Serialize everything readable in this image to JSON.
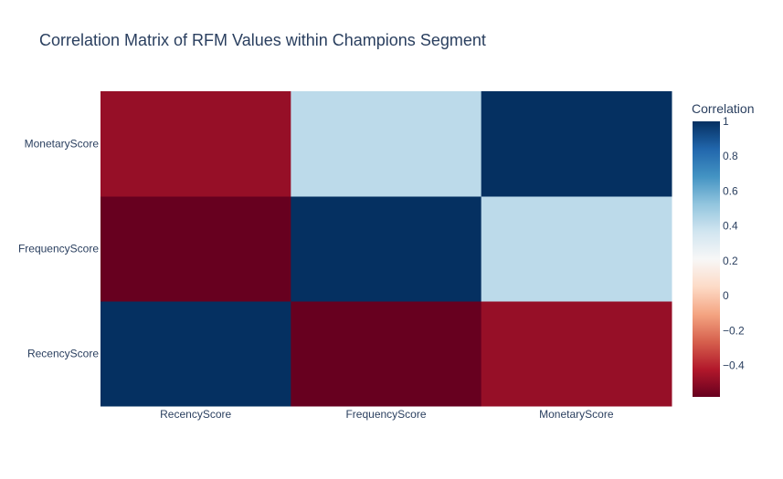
{
  "chart_data": {
    "type": "heatmap",
    "title": "Correlation Matrix of RFM Values within Champions Segment",
    "x_categories": [
      "RecencyScore",
      "FrequencyScore",
      "MonetaryScore"
    ],
    "y_categories": [
      "RecencyScore",
      "FrequencyScore",
      "MonetaryScore"
    ],
    "z": [
      [
        1.0,
        -0.58,
        -0.48
      ],
      [
        -0.58,
        1.0,
        0.42
      ],
      [
        -0.48,
        0.42,
        1.0
      ]
    ],
    "colorbar": {
      "title": "Correlation",
      "range": [
        -0.58,
        1.0
      ],
      "ticks": [
        -0.4,
        -0.2,
        0,
        0.2,
        0.4,
        0.6,
        0.8,
        1
      ],
      "tick_labels": [
        "−0.4",
        "−0.2",
        "0",
        "0.2",
        "0.4",
        "0.6",
        "0.8",
        "1"
      ],
      "colorscale": [
        [
          0.0,
          "#67001f"
        ],
        [
          0.1,
          "#b2182b"
        ],
        [
          0.2,
          "#d6604d"
        ],
        [
          0.3,
          "#f4a582"
        ],
        [
          0.4,
          "#fddbc7"
        ],
        [
          0.5,
          "#f7f7f7"
        ],
        [
          0.6,
          "#d1e5f0"
        ],
        [
          0.7,
          "#92c5de"
        ],
        [
          0.8,
          "#4393c3"
        ],
        [
          0.9,
          "#2166ac"
        ],
        [
          1.0,
          "#053061"
        ]
      ]
    }
  }
}
